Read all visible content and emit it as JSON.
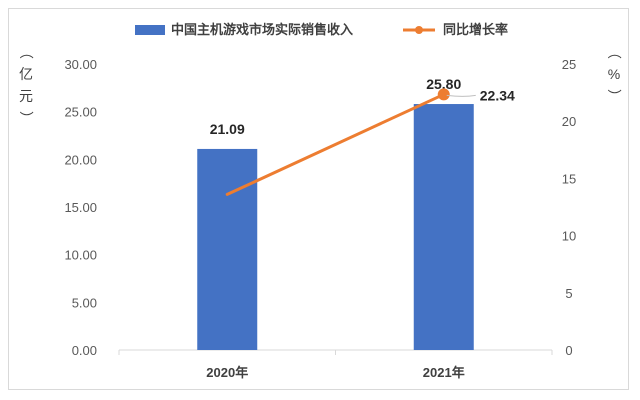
{
  "chart_data": {
    "type": "bar+line",
    "categories": [
      "2020年",
      "2021年"
    ],
    "series": [
      {
        "name": "中国主机游戏市场实际销售收入",
        "type": "bar",
        "axis": "left",
        "values": [
          21.09,
          25.8
        ],
        "labels": [
          "21.09",
          "25.80"
        ],
        "color": "#4472C4"
      },
      {
        "name": "同比增长率",
        "type": "line",
        "axis": "right",
        "values": [
          13.6,
          22.34
        ],
        "labels": [
          null,
          "22.34"
        ],
        "color": "#ED7D31"
      }
    ],
    "y_left": {
      "unit_label": "（亿元）",
      "range": [
        0,
        30
      ],
      "ticks": [
        "0.00",
        "5.00",
        "10.00",
        "15.00",
        "20.00",
        "25.00",
        "30.00"
      ]
    },
    "y_right": {
      "unit_label": "（%）",
      "range": [
        0,
        25
      ],
      "ticks": [
        "0",
        "5",
        "10",
        "15",
        "20",
        "25"
      ]
    },
    "legend_position": "top",
    "grid": false
  }
}
